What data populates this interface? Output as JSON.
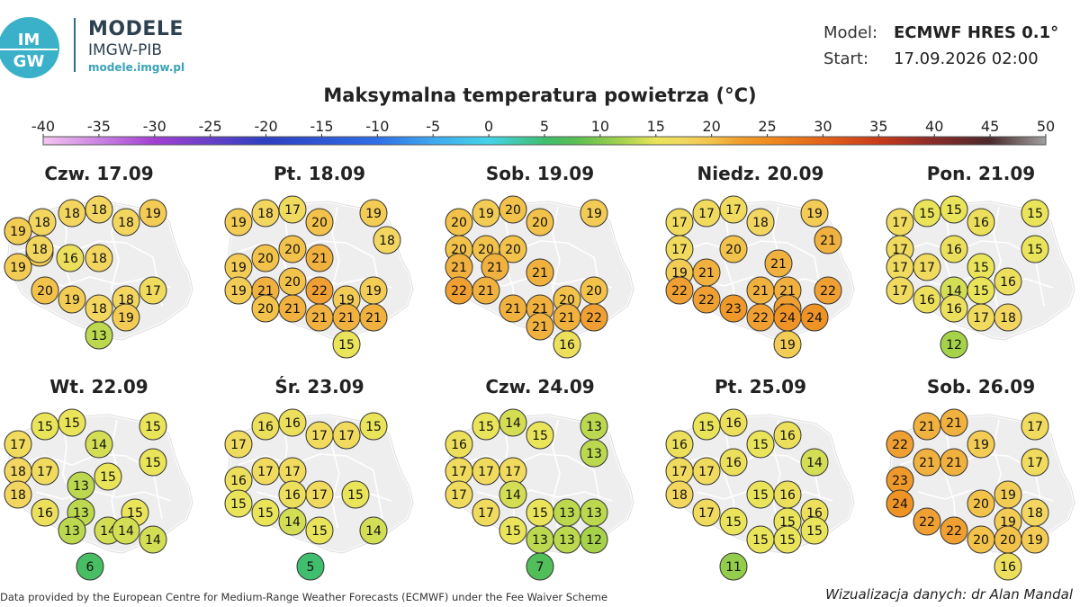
{
  "header": {
    "logo_text": "IMGW",
    "brand_title": "MODELE",
    "brand_subtitle": "IMGW-PIB",
    "brand_url": "modele.imgw.pl",
    "model_label": "Model:",
    "model_value": "ECMWF HRES 0.1°",
    "start_label": "Start:",
    "start_value": "17.09.2026 02:00"
  },
  "title": "Maksymalna temperatura powietrza (°C)",
  "colorbar": {
    "ticks": [
      "-40",
      "-35",
      "-30",
      "-25",
      "-20",
      "-15",
      "-10",
      "-5",
      "0",
      "5",
      "10",
      "15",
      "20",
      "25",
      "30",
      "35",
      "40",
      "45",
      "50"
    ],
    "min": -40,
    "max": 50,
    "colors": [
      "#f3c6f0",
      "#d98ae6",
      "#a23fd3",
      "#6a2bd0",
      "#2d3fc0",
      "#2f6fe6",
      "#3fa8f0",
      "#44d3e8",
      "#3fcf8f",
      "#57c04a",
      "#a6d24a",
      "#e9e45a",
      "#f2c24a",
      "#f29a2e",
      "#e86a1a",
      "#c93a1a",
      "#8a2a2a",
      "#4a2a2a",
      "#8a8a8a",
      "#c8c8c8"
    ]
  },
  "days": [
    {
      "label": "Czw. 17.09",
      "values": [
        18,
        18,
        18,
        18,
        19,
        18,
        19,
        19,
        18,
        19,
        18,
        16,
        20,
        19,
        18,
        18,
        17,
        19,
        13
      ]
    },
    {
      "label": "Pt. 18.09",
      "values": [
        19,
        18,
        17,
        20,
        19,
        19,
        20,
        20,
        18,
        19,
        21,
        21,
        19,
        22,
        21,
        20,
        19,
        21,
        21,
        21,
        20,
        15
      ]
    },
    {
      "label": "Sob. 19.09",
      "values": [
        20,
        19,
        20,
        20,
        19,
        20,
        20,
        20,
        21,
        21,
        22,
        20,
        21,
        21,
        21,
        20,
        21,
        21,
        21,
        22,
        16
      ]
    },
    {
      "label": "Niedz. 20.09",
      "values": [
        17,
        17,
        17,
        18,
        19,
        21,
        17,
        20,
        19,
        21,
        21,
        21,
        22,
        21,
        22,
        22,
        22,
        23,
        22,
        24,
        24,
        19
      ]
    },
    {
      "label": "Pon. 21.09",
      "values": [
        17,
        15,
        15,
        16,
        15,
        17,
        16,
        15,
        17,
        17,
        15,
        17,
        14,
        15,
        16,
        16,
        16,
        17,
        18,
        12
      ]
    },
    {
      "label": "Wt. 22.09",
      "values": [
        15,
        15,
        17,
        14,
        15,
        18,
        17,
        15,
        18,
        13,
        15,
        16,
        13,
        14,
        15,
        13,
        14,
        14,
        6
      ]
    },
    {
      "label": "Śr. 23.09",
      "values": [
        16,
        16,
        17,
        17,
        15,
        17,
        17,
        17,
        16,
        17,
        16,
        15,
        15,
        15,
        14,
        15,
        14,
        5
      ]
    },
    {
      "label": "Czw. 24.09",
      "values": [
        15,
        14,
        16,
        15,
        13,
        17,
        17,
        17,
        13,
        17,
        14,
        15,
        17,
        13,
        13,
        15,
        13,
        13,
        12,
        7
      ]
    },
    {
      "label": "Pt. 25.09",
      "values": [
        15,
        16,
        16,
        16,
        15,
        17,
        17,
        16,
        14,
        18,
        15,
        16,
        17,
        15,
        16,
        15,
        15,
        15,
        15,
        11
      ]
    },
    {
      "label": "Sob. 26.09",
      "values": [
        21,
        21,
        22,
        19,
        17,
        17,
        21,
        21,
        23,
        19,
        20,
        24,
        18,
        19,
        22,
        22,
        20,
        20,
        19,
        16
      ]
    }
  ],
  "footer": {
    "data_credit": "Data provided by the European Centre for Medium-Range Weather Forecasts (ECMWF) under the Fee Waiver Scheme",
    "viz_credit": "Wizualizacja danych: dr Alan Mandal"
  }
}
